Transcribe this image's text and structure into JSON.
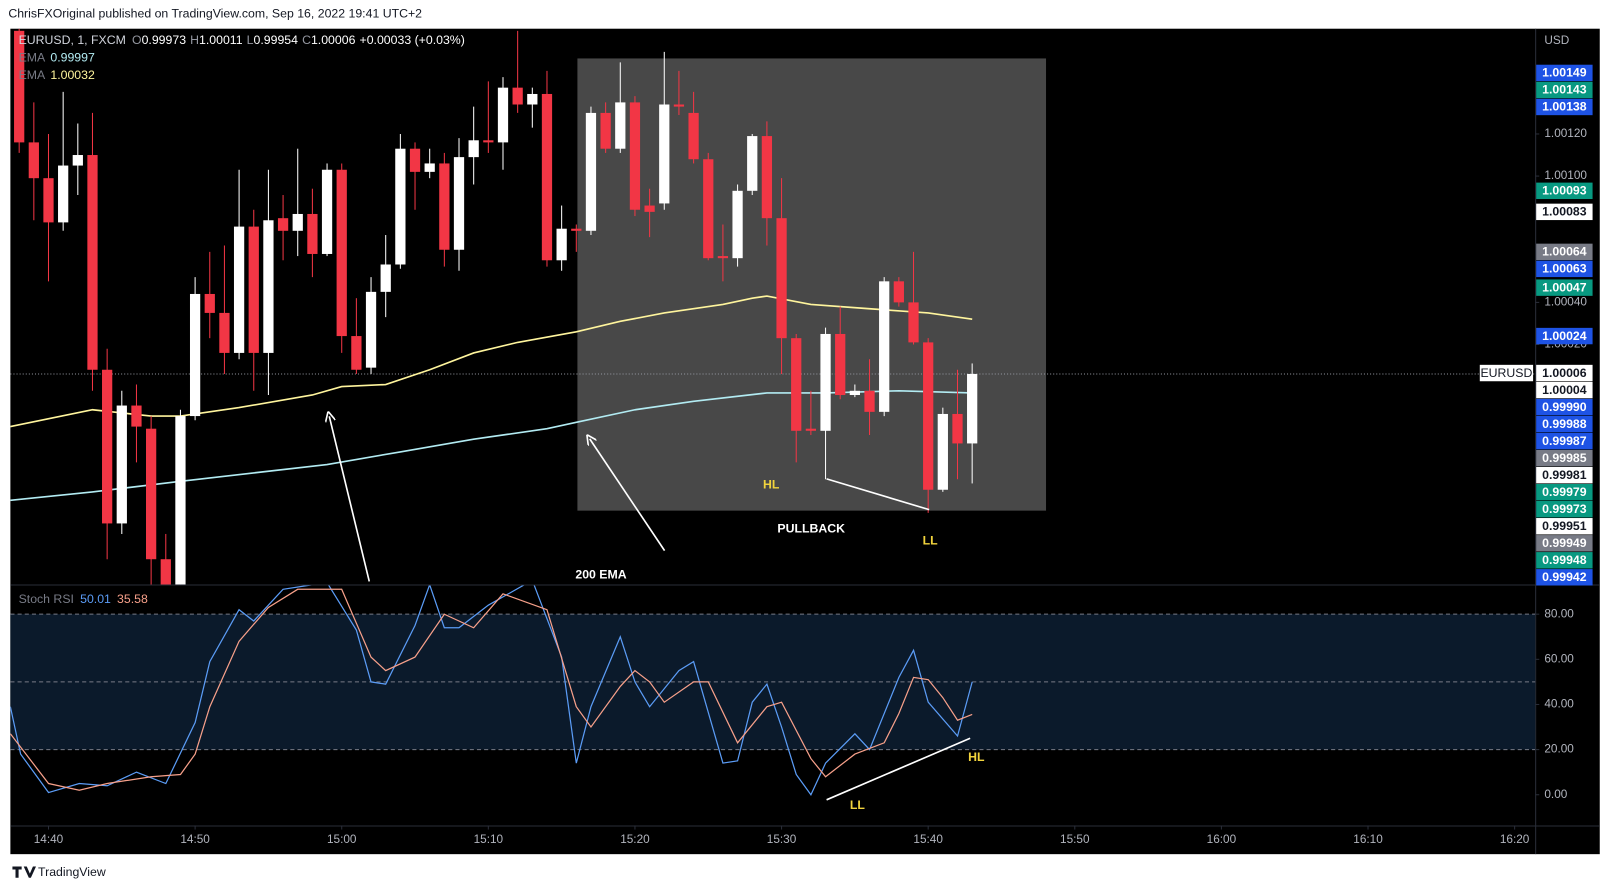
{
  "page": {
    "caption": "ChrisFXOriginal published on TradingView.com, Sep 16, 2022 19:41 UTC+2",
    "brand": "TradingView"
  },
  "chart_data": [
    {
      "type": "candlestick",
      "symbol": "EURUSD, 1, FXCM",
      "ohlc_keys": [
        "O",
        "H",
        "L",
        "C"
      ],
      "change": "+0.00033 (+0.03%)",
      "up_color": "#ffffff",
      "down_color": "#f23645",
      "open": [
        1.00169,
        1.00116,
        1.00099,
        1.00078,
        1.00105,
        1.0011,
        1.00008,
        0.99935,
        0.99991,
        0.9998,
        0.99918,
        0.99906,
        0.99986,
        1.00044,
        1.00035,
        1.00016,
        1.00076,
        1.00016,
        1.0008,
        1.00074,
        1.00082,
        1.00063,
        1.00103,
        1.00024,
        1.00009,
        1.00045,
        1.00058,
        1.00113,
        1.00102,
        1.00106,
        1.00065,
        1.00109,
        1.00117,
        1.00116,
        1.00142,
        1.00134,
        1.00139,
        1.0006,
        1.00075,
        1.00074,
        1.0013,
        1.00113,
        1.00135,
        1.00086,
        1.00087,
        1.00134,
        1.0013,
        1.00108,
        1.00062,
        1.00061,
        1.00093,
        1.00119,
        1.0008,
        1.00023,
        0.9998,
        0.99979,
        1.00025,
        0.99996,
        0.99998,
        0.99988,
        1.0005,
        1.0004,
        1.00021,
        0.99951,
        0.99987,
        0.99973
      ],
      "high": [
        1.0017,
        1.00135,
        1.0012,
        1.0014,
        1.00125,
        1.0013,
        1.00018,
        0.99998,
        1.00001,
        0.99986,
        0.9993,
        0.99989,
        1.00052,
        1.00064,
        1.00067,
        1.00103,
        1.00084,
        1.00103,
        1.00091,
        1.00113,
        1.00094,
        1.00106,
        1.00106,
        1.00042,
        1.00052,
        1.00072,
        1.0012,
        1.00116,
        1.00113,
        1.00111,
        1.00118,
        1.00133,
        1.00145,
        1.00147,
        1.00169,
        1.00142,
        1.0015,
        1.00086,
        1.00077,
        1.00133,
        1.00135,
        1.00154,
        1.00138,
        1.00094,
        1.00159,
        1.0015,
        1.0014,
        1.00111,
        1.00077,
        1.00096,
        1.0012,
        1.00126,
        1.00099,
        1.00025,
        0.99998,
        1.00028,
        1.00038,
        1.00001,
        1.00013,
        1.00052,
        1.00052,
        1.00064,
        1.00023,
        0.9999,
        1.00008,
        1.00011
      ],
      "low": [
        1.00111,
        1.00079,
        1.0005,
        1.00074,
        1.00091,
        0.99998,
        0.99918,
        0.9993,
        0.99964,
        0.99906,
        0.99906,
        0.99906,
        0.99984,
        1.00023,
        1.00006,
        1.00013,
        0.99998,
        0.99996,
        1.0006,
        1.00062,
        1.00052,
        1.00062,
        1.00016,
        1.00006,
        1.00006,
        1.00033,
        1.00056,
        1.00084,
        1.00099,
        1.00057,
        1.00055,
        1.00096,
        1.00111,
        1.00103,
        1.0013,
        1.00123,
        1.00057,
        1.00055,
        1.00064,
        1.00072,
        1.00111,
        1.00111,
        1.00081,
        1.00071,
        1.00084,
        1.00129,
        1.00106,
        1.0006,
        1.0005,
        1.00057,
        1.00091,
        1.00067,
        1.00006,
        0.99964,
        0.99977,
        0.99956,
        0.99994,
        0.99995,
        0.99977,
        0.99986,
        1.00038,
        1.0002,
        0.9994,
        0.9995,
        0.99956,
        0.99954
      ],
      "close": [
        1.00116,
        1.00099,
        1.00078,
        1.00105,
        1.0011,
        1.00008,
        0.99935,
        0.99991,
        0.99981,
        0.99918,
        0.99906,
        0.99986,
        1.00044,
        1.00035,
        1.00016,
        1.00076,
        1.00016,
        1.00079,
        1.00074,
        1.00082,
        1.00063,
        1.00103,
        1.00024,
        1.00008,
        1.00045,
        1.00058,
        1.00113,
        1.00102,
        1.00106,
        1.00065,
        1.00109,
        1.00117,
        1.00116,
        1.00142,
        1.00134,
        1.00139,
        1.0006,
        1.00075,
        1.00074,
        1.0013,
        1.00113,
        1.00135,
        1.00084,
        1.00083,
        1.00134,
        1.00133,
        1.00108,
        1.00061,
        1.00061,
        1.00093,
        1.00119,
        1.0008,
        1.00023,
        0.99979,
        0.99979,
        1.00025,
        0.99996,
        0.99998,
        0.99988,
        1.0005,
        1.0004,
        1.00021,
        0.99951,
        0.99987,
        0.99973,
        1.00006
      ],
      "series": [
        {
          "name": "EMA",
          "color": "#b2ebf2",
          "x": [
            -0.6,
            5,
            11,
            16,
            21,
            26,
            31,
            36,
            38,
            42,
            46,
            51,
            55,
            60,
            65
          ],
          "values": [
            0.99946,
            0.9995,
            0.99955,
            0.99959,
            0.99963,
            0.99969,
            0.99975,
            0.9998,
            0.99983,
            0.99989,
            0.99993,
            0.99997,
            0.99997,
            0.99998,
            0.99997
          ]
        },
        {
          "name": "EMA",
          "color": "#fff59d",
          "x": [
            -0.6,
            5,
            9,
            11,
            15,
            20,
            22,
            25,
            28,
            31,
            34,
            38,
            41,
            44,
            48,
            50,
            51,
            54,
            58,
            62,
            65
          ],
          "values": [
            0.99981,
            0.99989,
            0.99986,
            0.99986,
            0.9999,
            0.99996,
            1.0,
            1.00001,
            1.00008,
            1.00016,
            1.00021,
            1.00026,
            1.00031,
            1.00035,
            1.00039,
            1.00042,
            1.00043,
            1.00039,
            1.00037,
            1.00035,
            1.00032
          ]
        }
      ],
      "xlim": [
        -0.6,
        103.4
      ],
      "ylim": [
        0.99906,
        1.0017
      ],
      "y_unit": "USD",
      "yticks": [
        {
          "value": 1.0002,
          "label": "1.00020"
        },
        {
          "value": 1.0004,
          "label": "1.00040"
        },
        {
          "value": 1.001,
          "label": "1.00100"
        },
        {
          "value": 1.0012,
          "label": "1.00120"
        }
      ],
      "current_price_tag": "EURUSD",
      "price_labels": [
        {
          "value": 1.00149,
          "color": "#1e53e5"
        },
        {
          "value": 1.00143,
          "color": "#089981"
        },
        {
          "value": 1.00138,
          "color": "#1e53e5"
        },
        {
          "value": 1.00093,
          "color": "#089981"
        },
        {
          "value": 1.00083,
          "color": "#ffffff"
        },
        {
          "value": 1.00064,
          "color": "#787b86"
        },
        {
          "value": 1.00063,
          "color": "#1e53e5"
        },
        {
          "value": 1.00047,
          "color": "#089981"
        },
        {
          "value": 1.00024,
          "color": "#1e53e5"
        },
        {
          "value": 1.00006,
          "color": "#ffffff"
        },
        {
          "value": 1.00004,
          "color": "#ffffff"
        },
        {
          "value": 0.9999,
          "label": "0.99990",
          "color": "#1e53e5"
        },
        {
          "value": 0.99988,
          "color": "#1e53e5"
        },
        {
          "value": 0.99987,
          "color": "#1e53e5"
        },
        {
          "value": 0.99985,
          "color": "#787b86"
        },
        {
          "value": 0.99981,
          "color": "#ffffff"
        },
        {
          "value": 0.99979,
          "color": "#089981"
        },
        {
          "value": 0.99973,
          "color": "#089981"
        },
        {
          "value": 0.99951,
          "color": "#ffffff"
        },
        {
          "value": 0.99949,
          "color": "#787b86"
        },
        {
          "value": 0.99948,
          "color": "#089981"
        },
        {
          "value": 0.99942,
          "color": "#1e53e5"
        }
      ],
      "annotations": [
        {
          "text": "HL",
          "color": "#f2d43d"
        },
        {
          "text": "PULLBACK",
          "color": "#ffffff"
        },
        {
          "text": "LL",
          "color": "#f2d43d"
        },
        {
          "text": "200 EMA",
          "color": "#ffffff"
        }
      ]
    },
    {
      "type": "line",
      "title": "Stoch RSI",
      "series": [
        {
          "color": "#5b9cf6",
          "x": [
            -0.6,
            0.1,
            2,
            4.1,
            6,
            8,
            10,
            12,
            13,
            15,
            16,
            18,
            21,
            23,
            24,
            25,
            27,
            28,
            29,
            30,
            32,
            35,
            37,
            38,
            39,
            41,
            42,
            43,
            45,
            46,
            48,
            49,
            50,
            51,
            52,
            53,
            54,
            55,
            57,
            58,
            60,
            61,
            62,
            64,
            65
          ],
          "values": [
            39,
            18,
            1,
            5,
            4,
            10,
            5,
            32,
            59,
            82,
            77,
            91,
            94,
            73,
            50,
            49,
            75,
            93,
            74,
            74,
            84,
            95,
            61,
            14,
            39,
            70,
            50,
            39,
            55,
            59,
            14,
            15,
            41,
            49,
            30,
            9,
            0,
            14,
            27,
            20,
            52,
            64,
            41,
            26,
            50.01
          ]
        },
        {
          "color": "#f7a08a",
          "x": [
            -0.6,
            2,
            4.1,
            6,
            9,
            11,
            12,
            13,
            15,
            17,
            19,
            22,
            24,
            25,
            27,
            29,
            31,
            33,
            36,
            38,
            39,
            41,
            42,
            43,
            44,
            46,
            47,
            49,
            51,
            52,
            54,
            55,
            57,
            59,
            60,
            61,
            62,
            63,
            64,
            65
          ],
          "values": [
            27,
            5,
            2,
            5,
            8,
            9,
            18,
            39,
            68,
            83,
            91,
            91,
            61,
            55,
            61,
            80,
            74,
            89,
            82,
            39,
            30,
            48,
            55,
            50,
            41,
            50,
            50,
            23,
            39,
            41,
            16,
            8,
            18,
            23,
            36,
            52,
            51,
            43,
            33,
            35.58
          ]
        }
      ],
      "xlim": [
        -0.6,
        103.4
      ],
      "ylim": [
        -13.6,
        92.7
      ],
      "yticks": [
        {
          "value": 0,
          "label": "0.00"
        },
        {
          "value": 20,
          "label": "20.00"
        },
        {
          "value": 40,
          "label": "40.00"
        },
        {
          "value": 60,
          "label": "60.00"
        },
        {
          "value": 80,
          "label": "80.00"
        }
      ],
      "bands": [
        20,
        50,
        80
      ],
      "xticks": [
        {
          "value": 2,
          "label": "14:40"
        },
        {
          "value": 12,
          "label": "14:50"
        },
        {
          "value": 22,
          "label": "15:00"
        },
        {
          "value": 32,
          "label": "15:10"
        },
        {
          "value": 42,
          "label": "15:20"
        },
        {
          "value": 52,
          "label": "15:30"
        },
        {
          "value": 62,
          "label": "15:40"
        },
        {
          "value": 72,
          "label": "15:50"
        },
        {
          "value": 82,
          "label": "16:00"
        },
        {
          "value": 92,
          "label": "16:10"
        },
        {
          "value": 102,
          "label": "16:20"
        }
      ],
      "annotations": [
        {
          "text": "LL",
          "color": "#f2d43d"
        },
        {
          "text": "HL",
          "color": "#f2d43d"
        }
      ]
    }
  ]
}
